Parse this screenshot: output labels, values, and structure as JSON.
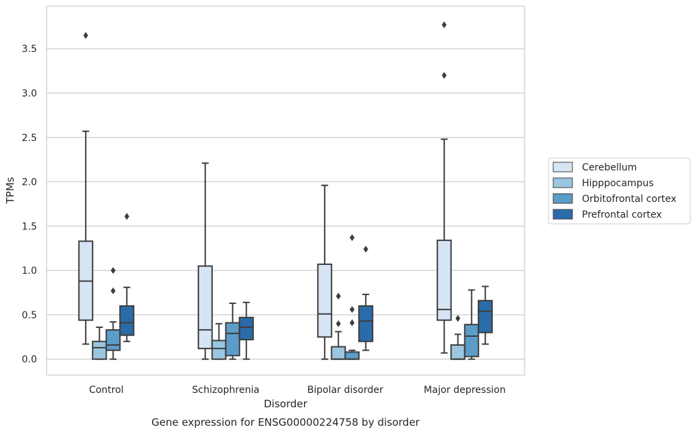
{
  "chart_data": {
    "type": "box",
    "title": "",
    "caption": "Gene expression for ENSG00000224758 by disorder",
    "xlabel": "Disorder",
    "ylabel": "TPMs",
    "ylim": [
      -0.18,
      3.98
    ],
    "yticks": [
      "0.0",
      "0.5",
      "1.0",
      "1.5",
      "2.0",
      "2.5",
      "3.0",
      "3.5"
    ],
    "grid": true,
    "legend_position": "right",
    "categories": [
      "Control",
      "Schizophrenia",
      "Bipolar disorder",
      "Major depression"
    ],
    "series": [
      {
        "name": "Cerebellum",
        "color": "#d6e5f4",
        "boxes": [
          {
            "whisker_low": 0.17,
            "q1": 0.44,
            "median": 0.88,
            "q3": 1.33,
            "whisker_high": 2.57,
            "outliers": [
              3.65
            ]
          },
          {
            "whisker_low": 0.0,
            "q1": 0.12,
            "median": 0.33,
            "q3": 1.05,
            "whisker_high": 2.21,
            "outliers": []
          },
          {
            "whisker_low": 0.0,
            "q1": 0.25,
            "median": 0.51,
            "q3": 1.07,
            "whisker_high": 1.96,
            "outliers": []
          },
          {
            "whisker_low": 0.07,
            "q1": 0.44,
            "median": 0.56,
            "q3": 1.34,
            "whisker_high": 2.48,
            "outliers": [
              3.2,
              3.77
            ]
          }
        ]
      },
      {
        "name": "Hipppocampus",
        "color": "#9ac6e0",
        "boxes": [
          {
            "whisker_low": 0.0,
            "q1": 0.0,
            "median": 0.13,
            "q3": 0.2,
            "whisker_high": 0.36,
            "outliers": []
          },
          {
            "whisker_low": 0.0,
            "q1": 0.0,
            "median": 0.12,
            "q3": 0.21,
            "whisker_high": 0.4,
            "outliers": []
          },
          {
            "whisker_low": 0.0,
            "q1": 0.0,
            "median": 0.0,
            "q3": 0.14,
            "whisker_high": 0.31,
            "outliers": [
              0.4,
              0.71
            ]
          },
          {
            "whisker_low": 0.0,
            "q1": 0.0,
            "median": 0.0,
            "q3": 0.16,
            "whisker_high": 0.28,
            "outliers": [
              0.46
            ]
          }
        ]
      },
      {
        "name": "Orbitofrontal cortex",
        "color": "#5c9cc9",
        "boxes": [
          {
            "whisker_low": 0.0,
            "q1": 0.1,
            "median": 0.16,
            "q3": 0.33,
            "whisker_high": 0.42,
            "outliers": [
              0.77,
              1.0
            ]
          },
          {
            "whisker_low": 0.0,
            "q1": 0.04,
            "median": 0.29,
            "q3": 0.41,
            "whisker_high": 0.63,
            "outliers": []
          },
          {
            "whisker_low": 0.0,
            "q1": 0.0,
            "median": 0.0,
            "q3": 0.08,
            "whisker_high": 0.1,
            "outliers": [
              0.41,
              0.56,
              1.37
            ]
          },
          {
            "whisker_low": 0.0,
            "q1": 0.03,
            "median": 0.26,
            "q3": 0.39,
            "whisker_high": 0.78,
            "outliers": []
          }
        ]
      },
      {
        "name": "Prefrontal cortex",
        "color": "#2b6ba8",
        "boxes": [
          {
            "whisker_low": 0.2,
            "q1": 0.27,
            "median": 0.41,
            "q3": 0.6,
            "whisker_high": 0.81,
            "outliers": [
              1.61
            ]
          },
          {
            "whisker_low": 0.0,
            "q1": 0.22,
            "median": 0.36,
            "q3": 0.47,
            "whisker_high": 0.64,
            "outliers": []
          },
          {
            "whisker_low": 0.1,
            "q1": 0.2,
            "median": 0.43,
            "q3": 0.6,
            "whisker_high": 0.73,
            "outliers": [
              1.24
            ]
          },
          {
            "whisker_low": 0.17,
            "q1": 0.3,
            "median": 0.54,
            "q3": 0.66,
            "whisker_high": 0.82,
            "outliers": []
          }
        ]
      }
    ]
  }
}
